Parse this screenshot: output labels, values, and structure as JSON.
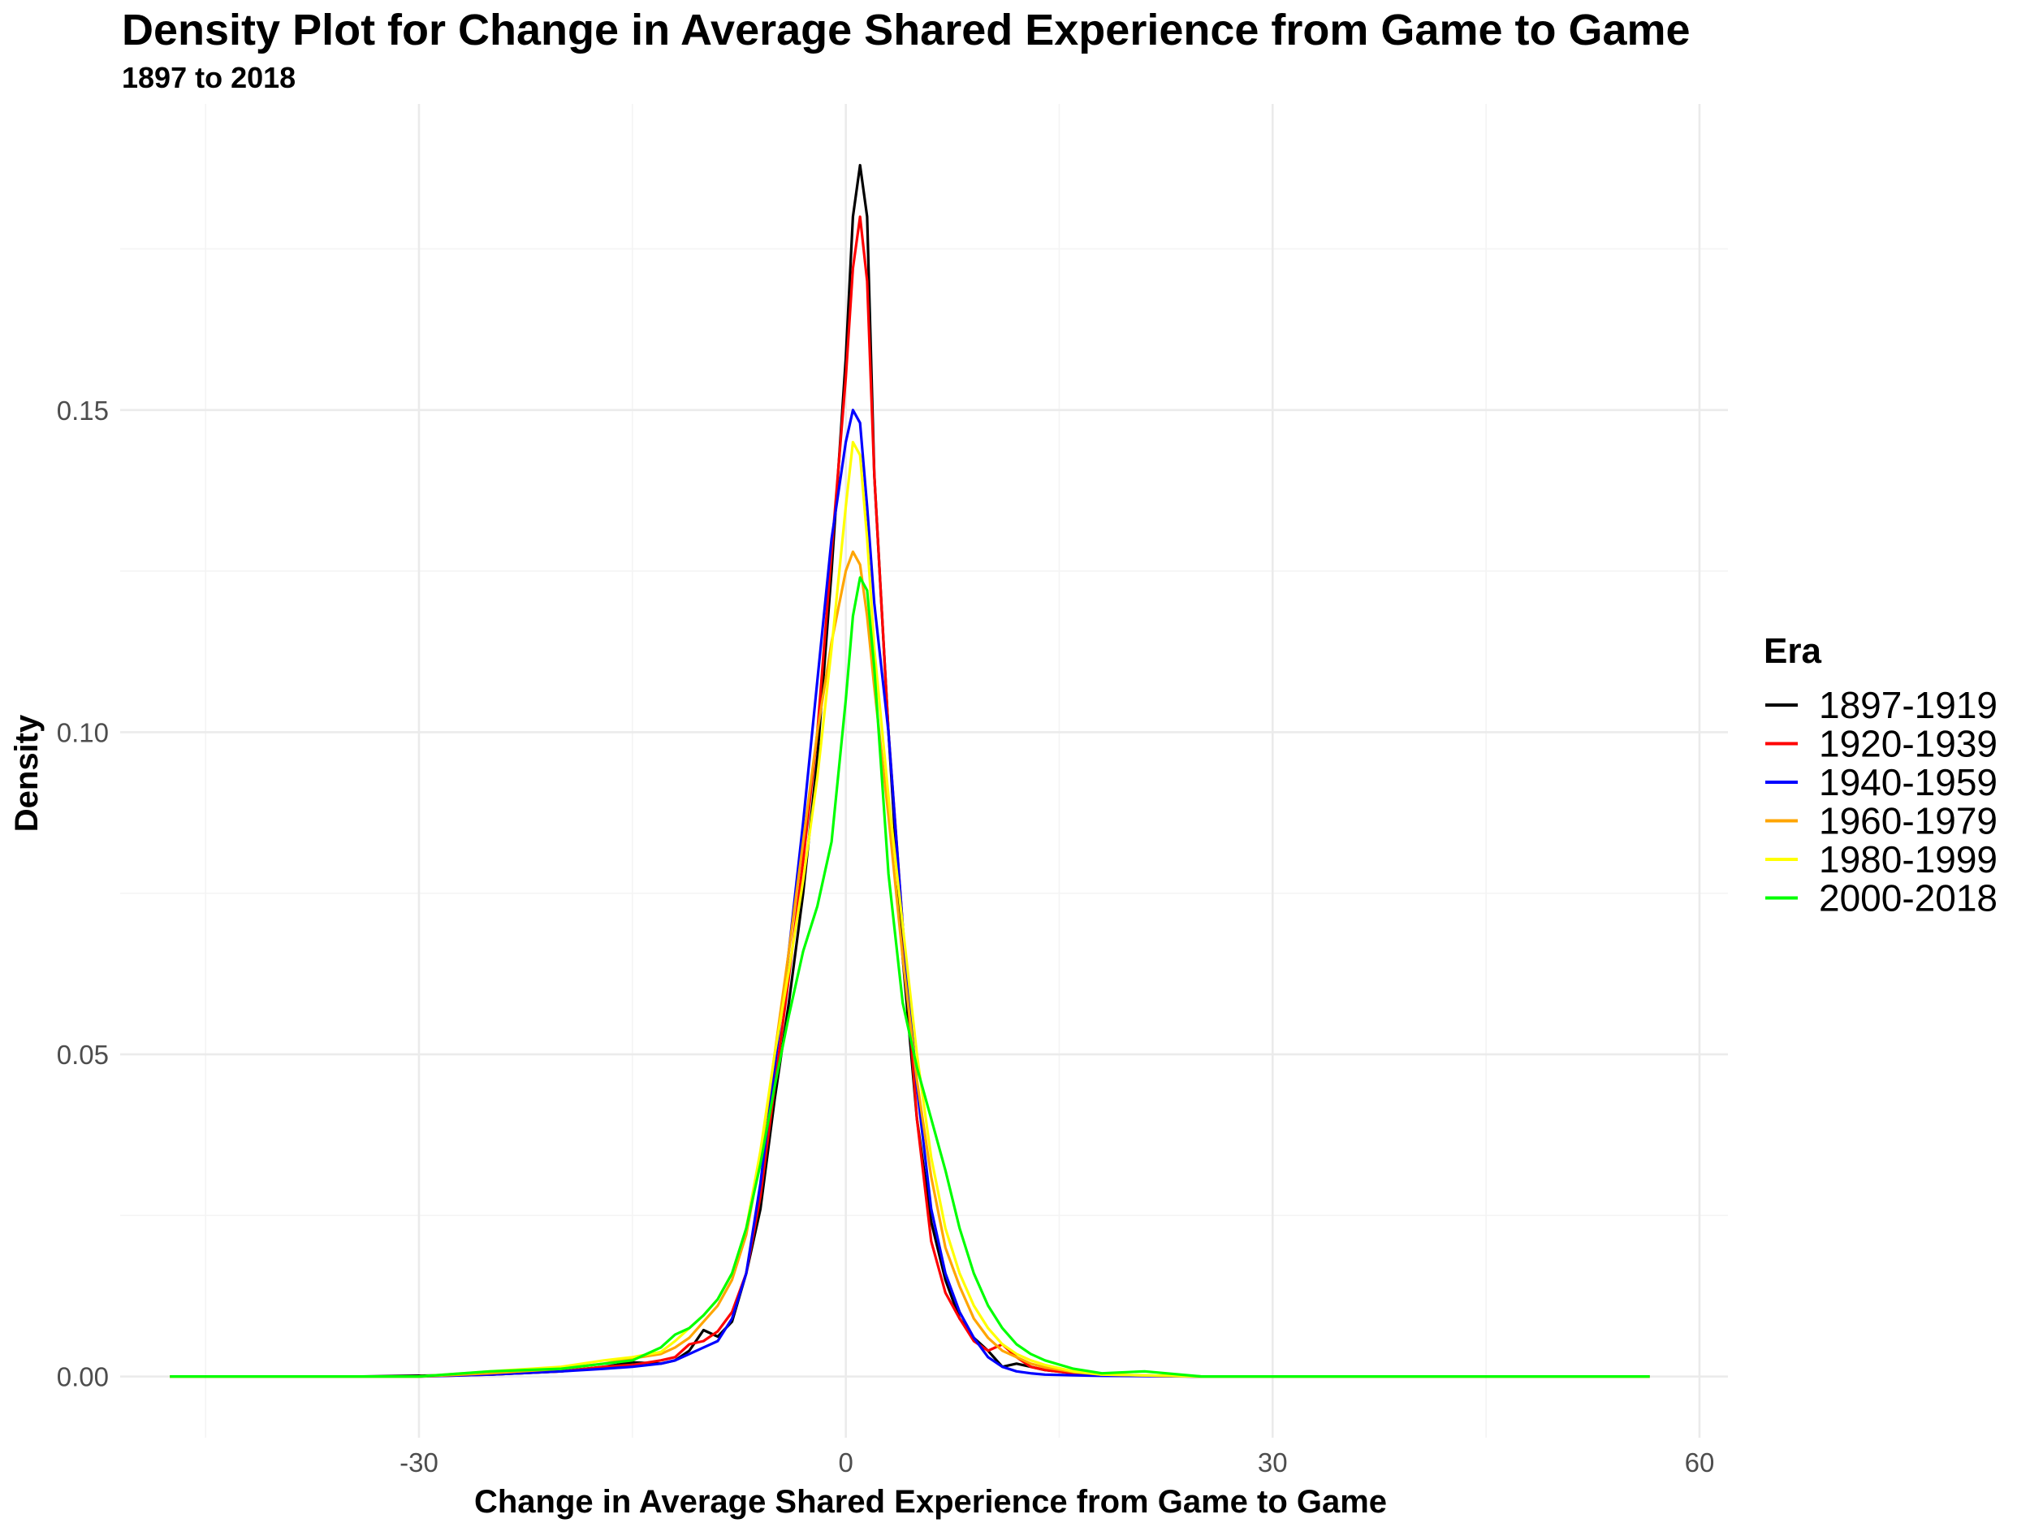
{
  "chart_data": {
    "type": "line",
    "title": "Density Plot for Change in Average Shared Experience from Game to Game",
    "subtitle": "1897 to 2018",
    "xlabel": "Change in Average Shared Experience from Game to Game",
    "ylabel": "Density",
    "xlim": [
      -51,
      62
    ],
    "ylim": [
      -0.0095,
      0.1975
    ],
    "x_ticks": [
      -30,
      0,
      30,
      60
    ],
    "x_tick_labels": [
      "-30",
      "0",
      "30",
      "60"
    ],
    "y_ticks": [
      0.0,
      0.05,
      0.1,
      0.15
    ],
    "y_tick_labels": [
      "0.00",
      "0.05",
      "0.10",
      "0.15"
    ],
    "grid": true,
    "legend": {
      "title": "Era",
      "position": "right"
    },
    "series": [
      {
        "name": "1897-1919",
        "color": "#000000",
        "x": [
          -34,
          -25,
          -20,
          -17,
          -15,
          -13,
          -12,
          -11,
          -10,
          -9,
          -8,
          -7,
          -6,
          -5,
          -4,
          -3,
          -2,
          -1,
          0,
          0.5,
          1,
          1.5,
          2,
          3,
          4,
          5,
          6,
          7,
          8,
          9,
          10,
          11,
          12,
          13,
          14,
          16,
          18,
          25
        ],
        "y": [
          0.0,
          0.0003,
          0.0008,
          0.0015,
          0.0022,
          0.002,
          0.0025,
          0.004,
          0.0072,
          0.0062,
          0.0085,
          0.016,
          0.026,
          0.043,
          0.058,
          0.075,
          0.096,
          0.125,
          0.158,
          0.18,
          0.188,
          0.18,
          0.14,
          0.1,
          0.065,
          0.04,
          0.024,
          0.015,
          0.009,
          0.006,
          0.004,
          0.0015,
          0.002,
          0.0015,
          0.001,
          0.0005,
          0.0002,
          0.0
        ]
      },
      {
        "name": "1920-1939",
        "color": "#ff0000",
        "x": [
          -30,
          -25,
          -20,
          -17,
          -15,
          -13,
          -12,
          -11,
          -10,
          -9,
          -8,
          -7,
          -6,
          -5,
          -4,
          -3,
          -2,
          -1,
          0,
          0.5,
          1,
          1.5,
          2,
          3,
          4,
          5,
          6,
          7,
          8,
          9,
          10,
          11,
          12,
          13,
          14,
          16,
          18,
          25
        ],
        "y": [
          0.0,
          0.0003,
          0.0008,
          0.0015,
          0.0018,
          0.0025,
          0.003,
          0.005,
          0.0055,
          0.007,
          0.01,
          0.016,
          0.028,
          0.045,
          0.062,
          0.08,
          0.1,
          0.128,
          0.155,
          0.172,
          0.18,
          0.17,
          0.14,
          0.1,
          0.07,
          0.04,
          0.021,
          0.013,
          0.009,
          0.0055,
          0.004,
          0.005,
          0.003,
          0.0015,
          0.001,
          0.0005,
          0.0002,
          0.0
        ]
      },
      {
        "name": "1940-1959",
        "color": "#0000ff",
        "x": [
          -30,
          -25,
          -20,
          -17,
          -15,
          -13,
          -12,
          -11,
          -10,
          -9,
          -8,
          -7,
          -6,
          -5,
          -4,
          -3,
          -2,
          -1,
          0,
          0.5,
          1,
          1.5,
          2,
          3,
          4,
          5,
          6,
          7,
          8,
          9,
          10,
          11,
          12,
          13,
          14,
          16,
          18,
          25
        ],
        "y": [
          0.0,
          0.0003,
          0.0008,
          0.0012,
          0.0015,
          0.002,
          0.0025,
          0.0035,
          0.0045,
          0.0055,
          0.009,
          0.016,
          0.03,
          0.048,
          0.066,
          0.086,
          0.108,
          0.13,
          0.145,
          0.15,
          0.148,
          0.135,
          0.12,
          0.1,
          0.07,
          0.045,
          0.026,
          0.016,
          0.01,
          0.006,
          0.003,
          0.0015,
          0.0008,
          0.0005,
          0.0003,
          0.0002,
          0.0001,
          0.0
        ]
      },
      {
        "name": "1960-1979",
        "color": "#ffa500",
        "x": [
          -30,
          -25,
          -20,
          -17,
          -15,
          -13,
          -12,
          -11,
          -10,
          -9,
          -8,
          -7,
          -6,
          -5,
          -4,
          -3,
          -2,
          -1,
          0,
          0.5,
          1,
          1.5,
          2,
          3,
          4,
          5,
          6,
          7,
          8,
          9,
          10,
          11,
          12,
          13,
          14,
          16,
          18,
          25
        ],
        "y": [
          0.0,
          0.0005,
          0.0012,
          0.002,
          0.0028,
          0.0035,
          0.0045,
          0.006,
          0.0085,
          0.011,
          0.015,
          0.022,
          0.034,
          0.05,
          0.066,
          0.083,
          0.1,
          0.114,
          0.125,
          0.128,
          0.126,
          0.118,
          0.107,
          0.087,
          0.065,
          0.046,
          0.031,
          0.02,
          0.014,
          0.009,
          0.006,
          0.004,
          0.003,
          0.002,
          0.0014,
          0.0007,
          0.0003,
          0.0
        ]
      },
      {
        "name": "1980-1999",
        "color": "#ffff00",
        "x": [
          -30,
          -25,
          -20,
          -17,
          -15,
          -13,
          -12,
          -11,
          -10,
          -9,
          -8,
          -7,
          -6,
          -5,
          -4,
          -3,
          -2,
          -1,
          0,
          0.5,
          1,
          1.5,
          2,
          3,
          4,
          5,
          6,
          7,
          8,
          9,
          10,
          11,
          12,
          13,
          14,
          16,
          18,
          25
        ],
        "y": [
          0.0,
          0.0008,
          0.0015,
          0.0025,
          0.003,
          0.0038,
          0.0055,
          0.0075,
          0.0095,
          0.012,
          0.016,
          0.023,
          0.035,
          0.05,
          0.063,
          0.077,
          0.093,
          0.113,
          0.135,
          0.145,
          0.143,
          0.13,
          0.113,
          0.09,
          0.07,
          0.05,
          0.034,
          0.023,
          0.016,
          0.011,
          0.0075,
          0.005,
          0.0035,
          0.0025,
          0.0018,
          0.0008,
          0.0003,
          0.0
        ]
      },
      {
        "name": "2000-2018",
        "color": "#00ff00",
        "x": [
          -30,
          -25,
          -20,
          -17,
          -15,
          -13,
          -12,
          -11,
          -10,
          -9,
          -8,
          -7,
          -6,
          -5,
          -4,
          -3,
          -2,
          -1,
          0,
          0.5,
          1,
          1.5,
          2,
          3,
          4,
          5,
          6,
          7,
          8,
          9,
          10,
          11,
          12,
          13,
          14,
          16,
          18,
          21,
          25
        ],
        "y": [
          0.0,
          0.0008,
          0.0012,
          0.002,
          0.0025,
          0.0045,
          0.0065,
          0.0075,
          0.0095,
          0.012,
          0.016,
          0.023,
          0.033,
          0.045,
          0.056,
          0.066,
          0.073,
          0.083,
          0.105,
          0.118,
          0.124,
          0.122,
          0.11,
          0.078,
          0.058,
          0.048,
          0.04,
          0.032,
          0.023,
          0.016,
          0.011,
          0.0075,
          0.005,
          0.0035,
          0.0025,
          0.0012,
          0.0005,
          0.0008,
          0.0
        ]
      }
    ]
  }
}
